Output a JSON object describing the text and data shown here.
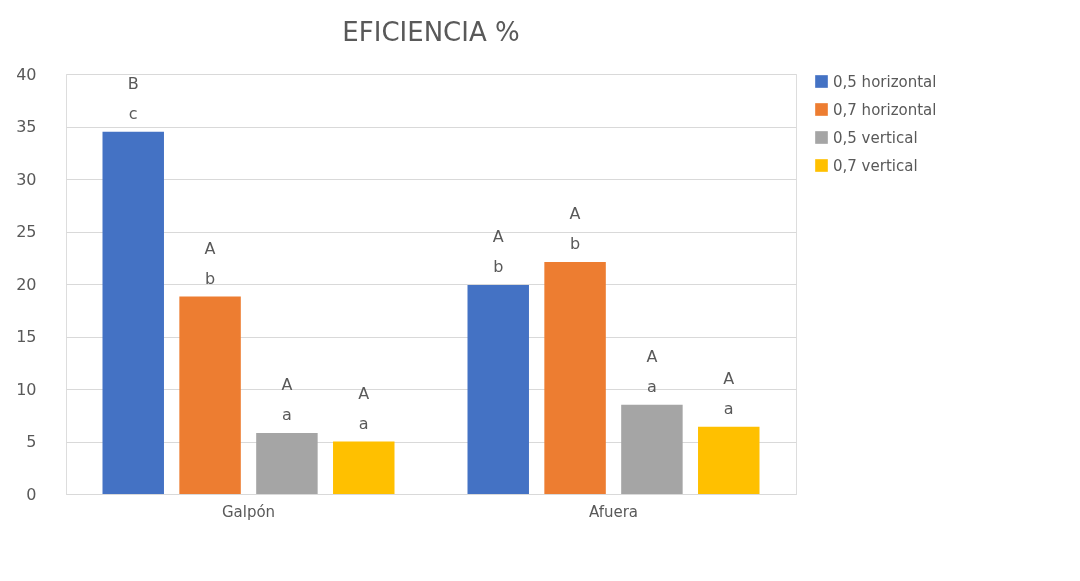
{
  "chart_data": {
    "type": "bar",
    "title": "EFICIENCIA %",
    "categories": [
      "Galpón",
      "Afuera"
    ],
    "series": [
      {
        "name": "0,5 horizontal",
        "color": "#4472c4",
        "values": [
          34.5,
          19.9
        ],
        "value_labels": [
          "B\nc",
          "A\nb"
        ]
      },
      {
        "name": "0,7 horizontal",
        "color": "#ed7d31",
        "values": [
          18.8,
          22.1
        ],
        "value_labels": [
          "A\nb",
          "A\nb"
        ]
      },
      {
        "name": "0,5 vertical",
        "color": "#a5a5a5",
        "values": [
          5.8,
          8.5
        ],
        "value_labels": [
          "A\na",
          "A\na"
        ]
      },
      {
        "name": "0,7 vertical",
        "color": "#ffc000",
        "values": [
          5.0,
          6.4
        ],
        "value_labels": [
          "A\na",
          "A\na"
        ]
      }
    ],
    "ylim": [
      0,
      40
    ],
    "yticks": [
      0,
      5,
      10,
      15,
      20,
      25,
      30,
      35,
      40
    ],
    "grid": "y",
    "legend": "right"
  }
}
